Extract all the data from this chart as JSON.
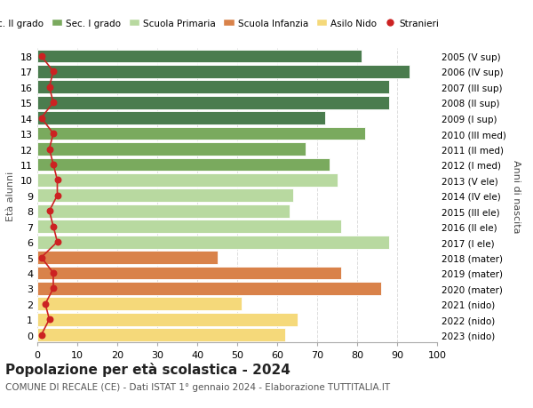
{
  "ages": [
    0,
    1,
    2,
    3,
    4,
    5,
    6,
    7,
    8,
    9,
    10,
    11,
    12,
    13,
    14,
    15,
    16,
    17,
    18
  ],
  "right_labels": [
    "2023 (nido)",
    "2022 (nido)",
    "2021 (nido)",
    "2020 (mater)",
    "2019 (mater)",
    "2018 (mater)",
    "2017 (I ele)",
    "2016 (II ele)",
    "2015 (III ele)",
    "2014 (IV ele)",
    "2013 (V ele)",
    "2012 (I med)",
    "2011 (II med)",
    "2010 (III med)",
    "2009 (I sup)",
    "2008 (II sup)",
    "2007 (III sup)",
    "2006 (IV sup)",
    "2005 (V sup)"
  ],
  "bar_values": [
    62,
    65,
    51,
    86,
    76,
    45,
    88,
    76,
    63,
    64,
    75,
    73,
    67,
    82,
    72,
    88,
    88,
    93,
    81
  ],
  "bar_colors": [
    "#f5d97a",
    "#f5d97a",
    "#f5d97a",
    "#d9824a",
    "#d9824a",
    "#d9824a",
    "#b8d9a0",
    "#b8d9a0",
    "#b8d9a0",
    "#b8d9a0",
    "#b8d9a0",
    "#7aaa5e",
    "#7aaa5e",
    "#7aaa5e",
    "#4a7c4e",
    "#4a7c4e",
    "#4a7c4e",
    "#4a7c4e",
    "#4a7c4e"
  ],
  "stranieri_values": [
    1,
    3,
    2,
    4,
    4,
    1,
    5,
    4,
    3,
    5,
    5,
    4,
    3,
    4,
    1,
    4,
    3,
    4,
    1
  ],
  "legend_labels": [
    "Sec. II grado",
    "Sec. I grado",
    "Scuola Primaria",
    "Scuola Infanzia",
    "Asilo Nido",
    "Stranieri"
  ],
  "legend_colors": [
    "#4a7c4e",
    "#7aaa5e",
    "#b8d9a0",
    "#d9824a",
    "#f5d97a",
    "#cc2222"
  ],
  "title": "Popolazione per età scolastica - 2024",
  "subtitle": "COMUNE DI RECALE (CE) - Dati ISTAT 1° gennaio 2024 - Elaborazione TUTTITALIA.IT",
  "ylabel": "Età alunni",
  "right_ylabel": "Anni di nascita",
  "xlim": [
    0,
    100
  ],
  "xticks": [
    0,
    10,
    20,
    30,
    40,
    50,
    60,
    70,
    80,
    90,
    100
  ],
  "bg_color": "#ffffff",
  "grid_color": "#dddddd"
}
